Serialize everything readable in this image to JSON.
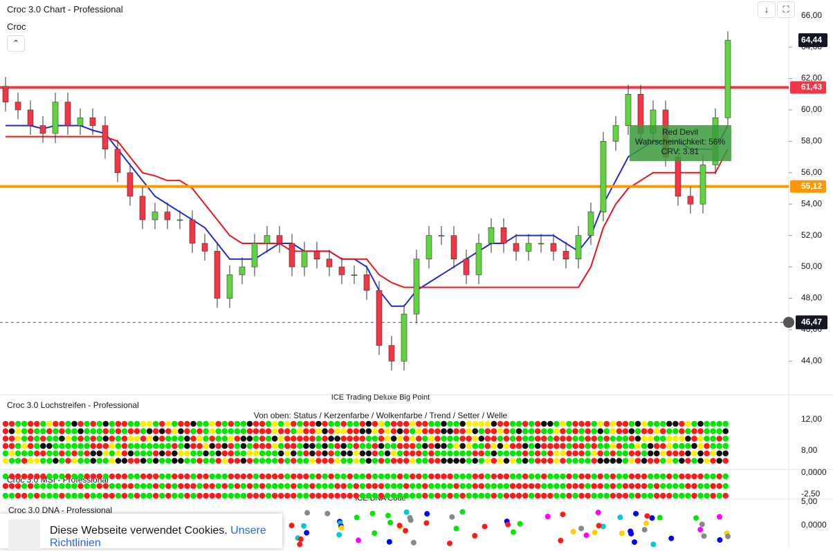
{
  "header": {
    "title": "Croc 3.0 Chart - Professional",
    "subtitle": "Croc"
  },
  "chart_data": {
    "type": "candlestick",
    "open": [
      61.5,
      60.5,
      60,
      59,
      58.5,
      60.5,
      59,
      59.5,
      59,
      57.5,
      56,
      54.5,
      53,
      53.5,
      53,
      53,
      51.5,
      51,
      48,
      49.5,
      50,
      51.5,
      52,
      51.5,
      50,
      51,
      50.5,
      50,
      49.5,
      49.5,
      48.5,
      45,
      44,
      47,
      50.5,
      52,
      52,
      50.5,
      49.5,
      51.5,
      52.5,
      51.5,
      51,
      51.5,
      51.5,
      51,
      50.5,
      52,
      53.5,
      58,
      59,
      61,
      58.5,
      60,
      57,
      54.5,
      54,
      56.5,
      59.5
    ],
    "high": [
      62.1,
      61.1,
      60.6,
      59.6,
      61.1,
      61.1,
      60.1,
      60.1,
      59.6,
      58.1,
      56.6,
      55.1,
      54.1,
      54.1,
      53.6,
      53.6,
      52.1,
      51.6,
      50.1,
      50.6,
      52.1,
      52.6,
      52.6,
      52.1,
      51.6,
      51.6,
      51.1,
      50.6,
      50.1,
      50.1,
      49.1,
      45.6,
      47.6,
      51.1,
      52.6,
      52.6,
      52.6,
      51.1,
      52.1,
      53.1,
      53.1,
      52.1,
      52.1,
      52.1,
      52.1,
      51.6,
      52.6,
      54.1,
      58.6,
      59.6,
      61.6,
      61.6,
      60.6,
      60.6,
      57.6,
      55.1,
      57.1,
      60.1,
      65.0
    ],
    "low": [
      59.9,
      59.4,
      58.4,
      57.9,
      57.9,
      58.4,
      58.4,
      58.4,
      56.9,
      55.4,
      53.9,
      52.4,
      52.4,
      52.4,
      52.4,
      50.9,
      50.4,
      47.4,
      47.4,
      48.9,
      49.4,
      50.9,
      50.9,
      49.4,
      49.4,
      49.9,
      49.4,
      48.9,
      48.9,
      47.9,
      44.4,
      43.4,
      43.4,
      46.4,
      49.9,
      51.4,
      49.9,
      48.9,
      48.9,
      50.9,
      50.9,
      50.4,
      50.4,
      50.9,
      50.4,
      49.9,
      49.9,
      51.4,
      52.9,
      57.4,
      58.4,
      57.9,
      57.9,
      56.4,
      53.9,
      53.4,
      53.4,
      55.9,
      58.9
    ],
    "close": [
      60.5,
      60,
      59,
      58.5,
      60.5,
      59,
      59.5,
      59,
      57.5,
      56,
      54.5,
      53,
      53.5,
      53,
      53,
      51.5,
      51,
      48,
      49.5,
      50,
      51.5,
      52,
      51.5,
      50,
      51,
      50.5,
      50,
      49.5,
      49.5,
      48.5,
      45,
      44,
      47,
      50.5,
      52,
      52,
      50.5,
      49.5,
      51.5,
      52.5,
      51.5,
      51,
      51.5,
      51.5,
      51,
      50.5,
      52,
      53.5,
      58,
      59,
      61,
      58.5,
      60,
      57,
      54.5,
      54,
      56.5,
      59.5,
      64.44
    ],
    "up_color": "#5fd43f",
    "down_color": "#f23645",
    "series": [
      {
        "color": "#1e2ad8",
        "values": [
          59,
          59,
          59,
          58.8,
          59,
          59,
          59,
          58.7,
          58.5,
          57.5,
          56.5,
          55.5,
          54.5,
          54,
          53.5,
          53,
          52.5,
          51.5,
          50.5,
          50.5,
          50.5,
          51,
          51.5,
          51.5,
          51,
          51,
          51,
          50.5,
          50.5,
          50,
          48.5,
          47.5,
          47.5,
          48.5,
          49,
          49.5,
          50,
          50.5,
          51,
          51.5,
          51.5,
          52,
          52,
          52,
          52,
          51.5,
          51,
          52,
          54,
          55.5,
          57,
          57.5,
          58,
          58,
          58,
          57.5,
          57.5,
          57.5,
          59
        ]
      },
      {
        "color": "#e8161b",
        "values": [
          58.3,
          58.3,
          58.3,
          58.3,
          58.3,
          58.3,
          58.3,
          58.3,
          58.3,
          58,
          57,
          56,
          55.8,
          55.5,
          55.5,
          55,
          54,
          53,
          52,
          51.5,
          51.5,
          51.5,
          51.5,
          51,
          51,
          51,
          51,
          50.5,
          50.5,
          50.5,
          49.5,
          49,
          48.7,
          48.7,
          48.7,
          48.7,
          48.7,
          48.7,
          48.7,
          48.7,
          48.7,
          48.7,
          48.7,
          48.7,
          48.7,
          48.7,
          48.7,
          50,
          52.5,
          54,
          55,
          55.5,
          56,
          56,
          56,
          56,
          56,
          56,
          57.5
        ]
      }
    ],
    "ylim": [
      41.9,
      67
    ],
    "yticks": [
      {
        "value": 44,
        "label": "44,00"
      },
      {
        "value": 46,
        "label": "46,00"
      },
      {
        "value": 48,
        "label": "48,00"
      },
      {
        "value": 50,
        "label": "50,00"
      },
      {
        "value": 52,
        "label": "52,00"
      },
      {
        "value": 54,
        "label": "54,00"
      },
      {
        "value": 56,
        "label": "56,00"
      },
      {
        "value": 58,
        "label": "58,00"
      },
      {
        "value": 60,
        "label": "60,00"
      },
      {
        "value": 62,
        "label": "62,00"
      },
      {
        "value": 64,
        "label": "64,00"
      },
      {
        "value": 66,
        "label": "66,00"
      }
    ],
    "price_lines": [
      {
        "value": 61.43,
        "label": "61,43",
        "color": "#f23645"
      },
      {
        "value": 55.12,
        "label": "55,12",
        "color": "#ff9800"
      }
    ],
    "crosshair": {
      "value": 46.47,
      "label": "46,47"
    },
    "last": {
      "value": 64.44,
      "label": "64,44"
    },
    "annotation": {
      "title": "Red Devil",
      "lines": [
        "Wahrscheinlichkeit: 56%",
        "CRV: 3.81"
      ]
    }
  },
  "panels": {
    "ice_title": "ICE Trading Deluxe Big Point",
    "ice_legend": "Croc 3.0 Lochstreifen - Professional",
    "ice_subtitle": "Von oben: Status / Kerzenfarbe / Wolkenfarbe / Trend / Setter / Welle",
    "msi_title": "Croc 3.0 MSI - Professional",
    "dna_header": "ICE DNA Code",
    "dna_title": "Croc 3.0 DNA - Professional",
    "ice_ticks": [
      "12,00",
      "8,00"
    ],
    "msi_ticks": [
      "0,0000",
      "-2,50"
    ],
    "dna_ticks": [
      "5,00",
      "0,0000"
    ]
  },
  "cookie": {
    "text": "Diese Webseite verwendet Cookies.",
    "link": "Unsere Richtlinien"
  }
}
